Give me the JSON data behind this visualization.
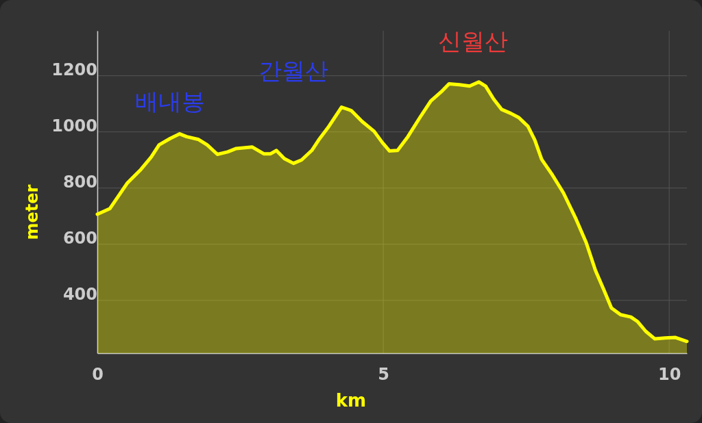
{
  "chart_data": {
    "type": "area",
    "xlabel": "km",
    "ylabel": "meter",
    "xlim": [
      0,
      10.31
    ],
    "ylim": [
      212,
      1360
    ],
    "xticks": [
      0,
      5,
      10
    ],
    "yticks": [
      400,
      600,
      800,
      1000,
      1200
    ],
    "grid": true,
    "x": [
      0,
      0.22,
      0.52,
      0.76,
      0.94,
      1.08,
      1.27,
      1.44,
      1.56,
      1.77,
      1.92,
      2.1,
      2.28,
      2.43,
      2.71,
      2.91,
      3.03,
      3.13,
      3.27,
      3.43,
      3.57,
      3.75,
      3.87,
      4.05,
      4.27,
      4.44,
      4.63,
      4.84,
      4.98,
      5.11,
      5.25,
      5.43,
      5.64,
      5.83,
      6.03,
      6.15,
      6.33,
      6.51,
      6.67,
      6.79,
      6.93,
      7.07,
      7.23,
      7.37,
      7.53,
      7.65,
      7.77,
      7.95,
      8.15,
      8.37,
      8.55,
      8.71,
      8.85,
      8.99,
      9.15,
      9.33,
      9.45,
      9.59,
      9.75,
      9.93,
      10.11,
      10.31
    ],
    "series": [
      {
        "color": "#ffff00",
        "values": [
          707,
          727,
          817,
          866,
          910,
          954,
          976,
          993,
          983,
          973,
          954,
          920,
          929,
          941,
          946,
          922,
          922,
          934,
          905,
          888,
          900,
          934,
          971,
          1020,
          1088,
          1076,
          1037,
          1002,
          963,
          932,
          934,
          983,
          1051,
          1110,
          1146,
          1171,
          1168,
          1163,
          1178,
          1163,
          1117,
          1080,
          1066,
          1051,
          1020,
          971,
          902,
          849,
          783,
          690,
          605,
          507,
          441,
          373,
          349,
          341,
          324,
          290,
          263,
          266,
          268,
          254
        ]
      }
    ],
    "annotations": [
      "배내봉",
      "간월산",
      "신월산"
    ]
  }
}
